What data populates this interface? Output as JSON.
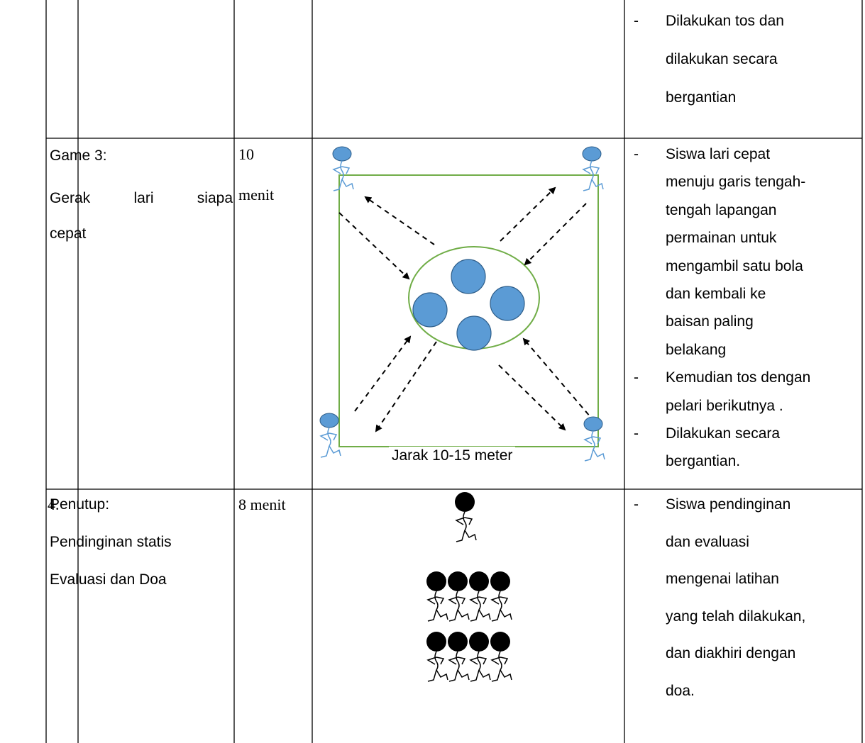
{
  "table": {
    "bullet": "-",
    "rows": [
      {
        "notes": [
          [
            "Dilakukan tos dan",
            "dilakukan secara",
            "bergantian"
          ]
        ]
      },
      {
        "activity": [
          "Game 3:",
          "Gerak lari siapa",
          "cepat"
        ],
        "time": [
          "10",
          "menit"
        ],
        "diagram_label": "Jarak 10-15 meter",
        "notes": [
          [
            "Siswa lari cepat",
            "menuju garis tengah-",
            "tengah lapangan",
            "permainan untuk",
            "mengambil satu bola",
            "dan kembali ke",
            "baisan paling",
            "belakang"
          ],
          [
            "Kemudian tos dengan",
            "pelari berikutnya ."
          ],
          [
            "Dilakukan secara",
            "bergantian."
          ]
        ]
      },
      {
        "number": "4.",
        "activity": [
          "Penutup:",
          "Pendinginan statis",
          "Evaluasi dan Doa"
        ],
        "time": [
          "8 menit"
        ],
        "notes": [
          [
            "Siswa pendinginan",
            "dan evaluasi",
            "mengenai latihan",
            "yang telah dilakukan,",
            "dan diakhiri dengan",
            "doa."
          ]
        ]
      }
    ]
  }
}
